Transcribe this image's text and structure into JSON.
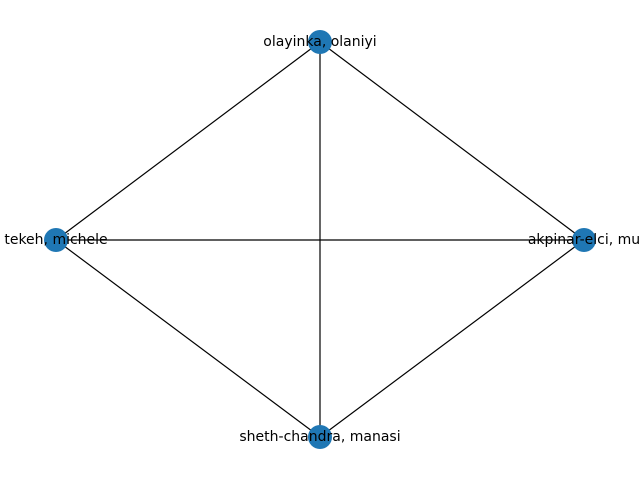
{
  "graph": {
    "node_color": "#1f77b4",
    "edge_color": "#000000",
    "nodes": [
      {
        "id": "olayinka",
        "label": "olayinka, olaniyi"
      },
      {
        "id": "akpinar",
        "label": "akpinar-elci, mu"
      },
      {
        "id": "sheth",
        "label": "sheth-chandra, manasi"
      },
      {
        "id": "tekeh",
        "label": "tekeh, michele"
      }
    ],
    "edges": [
      {
        "source": "olayinka",
        "target": "tekeh"
      },
      {
        "source": "olayinka",
        "target": "akpinar"
      },
      {
        "source": "olayinka",
        "target": "sheth"
      },
      {
        "source": "tekeh",
        "target": "akpinar"
      },
      {
        "source": "tekeh",
        "target": "sheth"
      },
      {
        "source": "akpinar",
        "target": "sheth"
      }
    ]
  }
}
